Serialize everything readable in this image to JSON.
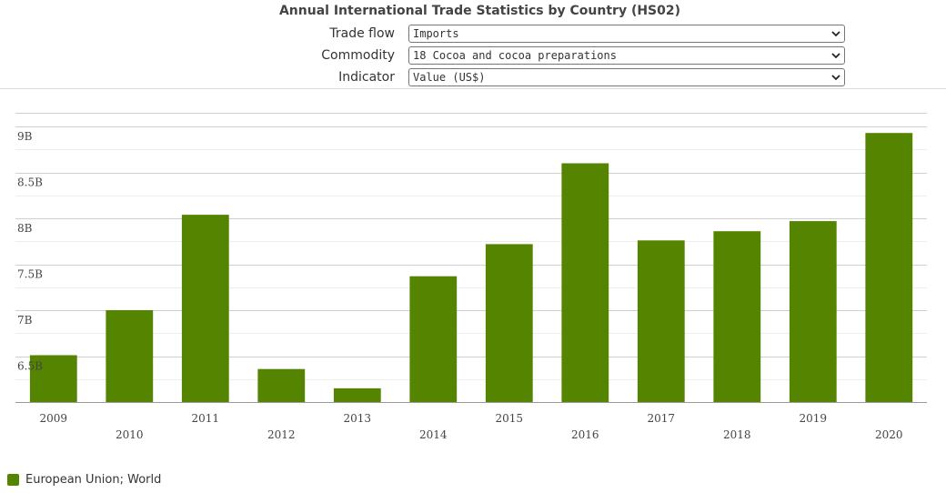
{
  "page": {
    "title": "Annual International Trade Statistics by Country (HS02)"
  },
  "controls": [
    {
      "label": "Trade flow",
      "value": "Imports"
    },
    {
      "label": "Commodity",
      "value": "18 Cocoa and cocoa preparations"
    },
    {
      "label": "Indicator",
      "value": "Value (US$)"
    }
  ],
  "colors": {
    "bar": "#548400",
    "grid": "#d0d0d0",
    "minor_grid": "#eeeeee"
  },
  "chart_data": {
    "type": "bar",
    "title": "Annual International Trade Statistics by Country (HS02)",
    "categories": [
      "2009",
      "2010",
      "2011",
      "2012",
      "2013",
      "2014",
      "2015",
      "2016",
      "2017",
      "2018",
      "2019",
      "2020"
    ],
    "series": [
      {
        "name": "European Union; World",
        "values": [
          6.51,
          7.0,
          8.04,
          6.36,
          6.15,
          7.37,
          7.72,
          8.6,
          7.76,
          7.86,
          7.97,
          8.93
        ]
      }
    ],
    "ylim": [
      6.0,
      9.15
    ],
    "yticks": [
      6.5,
      7.0,
      7.5,
      8.0,
      8.5,
      9.0
    ],
    "ytick_labels": [
      "6.5B",
      "7B",
      "7.5B",
      "8B",
      "8.5B",
      "9B"
    ],
    "xlabel": "",
    "ylabel": "",
    "legend": "bottom-left",
    "grid": true
  },
  "legend": {
    "label": "European Union; World",
    "icon": "square-swatch"
  }
}
